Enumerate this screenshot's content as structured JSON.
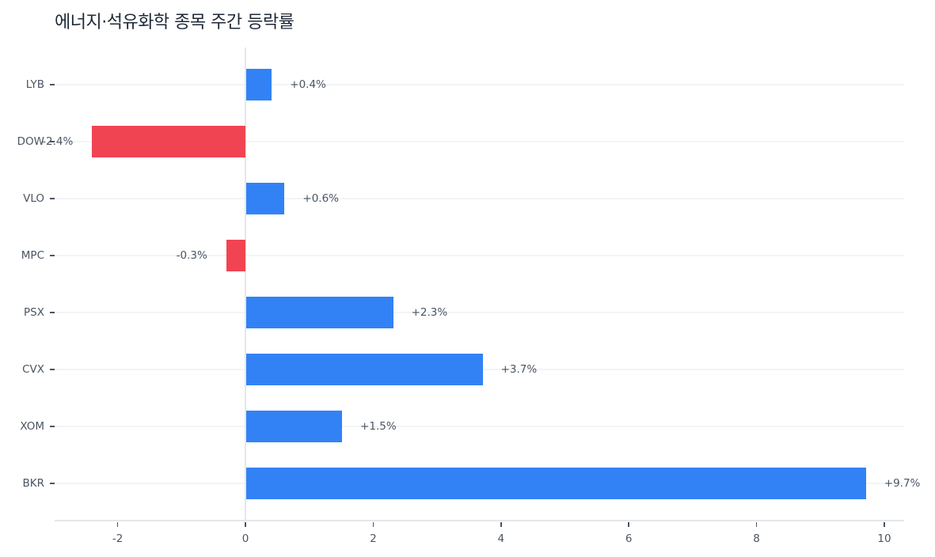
{
  "title": "에너지·석유화학 종목 주간 등락률",
  "colors": {
    "positive": "#3282f6",
    "negative": "#f04452",
    "grid": "#f3f4f6",
    "axis": "#e5e7eb",
    "text": "#4b5563",
    "title": "#1f2937"
  },
  "chart_data": {
    "type": "bar",
    "orientation": "horizontal",
    "title": "에너지·석유화학 종목 주간 등락률",
    "xlabel": "",
    "ylabel": "",
    "categories": [
      "LYB",
      "DOW",
      "VLO",
      "MPC",
      "PSX",
      "CVX",
      "XOM",
      "BKR"
    ],
    "values": [
      0.4,
      -2.4,
      0.6,
      -0.3,
      2.3,
      3.7,
      1.5,
      9.7
    ],
    "value_labels": [
      "+0.4%",
      "-2.4%",
      "+0.6%",
      "-0.3%",
      "+2.3%",
      "+3.7%",
      "+1.5%",
      "+9.7%"
    ],
    "xlim": [
      -3,
      10.3
    ],
    "xticks": [
      -2,
      0,
      2,
      4,
      6,
      8,
      10
    ],
    "xtick_labels": [
      "-2",
      "0",
      "2",
      "4",
      "6",
      "8",
      "10"
    ],
    "grid": "horizontal",
    "legend": null
  }
}
